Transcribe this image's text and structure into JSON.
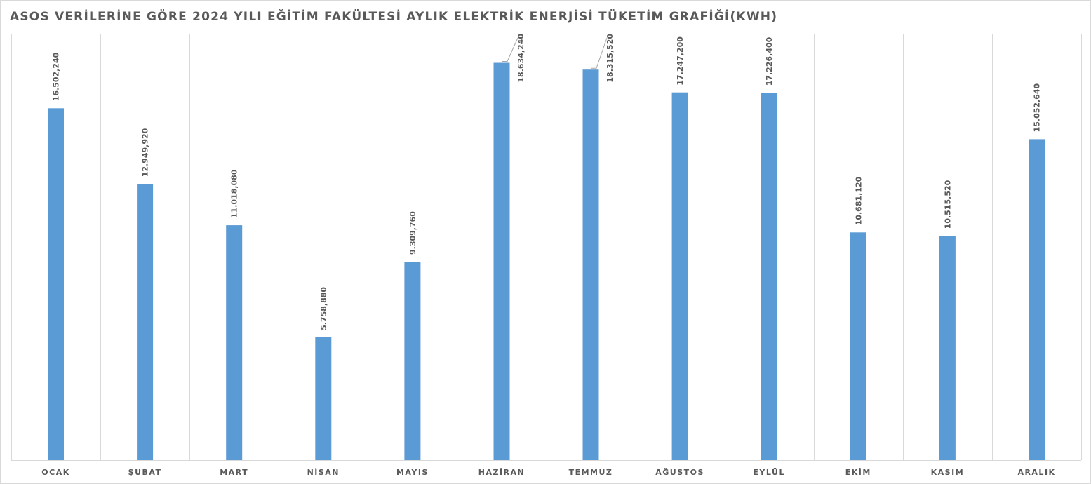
{
  "chart_data": {
    "type": "bar",
    "title": "ASOS VERİLERİNE GÖRE 2024 YILI EĞİTİM FAKÜLTESİ AYLIK ELEKTRİK ENERJİSİ TÜKETİM GRAFİĞİ(KWH)",
    "xlabel": "",
    "ylabel": "",
    "ylim": [
      0,
      20000000
    ],
    "grid": "vertical",
    "legend": "none",
    "bar_color": "#5B9BD5",
    "categories": [
      "OCAK",
      "ŞUBAT",
      "MART",
      "NİSAN",
      "MAYIS",
      "HAZİRAN",
      "TEMMUZ",
      "AĞUSTOS",
      "EYLÜL",
      "EKİM",
      "KASIM",
      "ARALIK"
    ],
    "values": [
      16502240,
      12949920,
      11018080,
      5758880,
      9309760,
      18634240,
      18315520,
      17247200,
      17226400,
      10681120,
      10515520,
      15052640
    ],
    "value_labels": [
      "16.502,240",
      "12.949,920",
      "11.018,080",
      "5.758,880",
      "9.309,760",
      "18.634,240",
      "18.315,520",
      "17.247,200",
      "17.226,400",
      "10.681,120",
      "10.515,520",
      "15.052,640"
    ]
  }
}
